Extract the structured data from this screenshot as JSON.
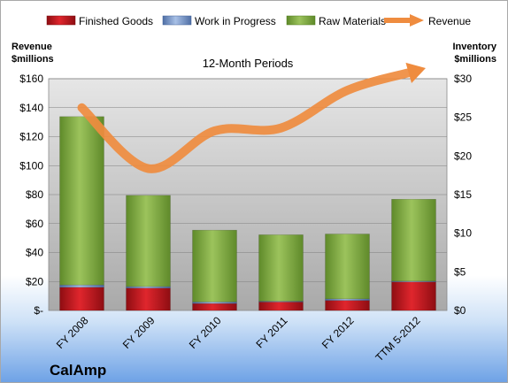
{
  "company": "CalAmp",
  "chart_data": {
    "type": "bar",
    "subtitle": "12-Month Periods",
    "categories": [
      "FY 2008",
      "FY 2009",
      "FY 2010",
      "FY 2011",
      "FY 2012",
      "TTM 5-2012"
    ],
    "stacked_series": [
      {
        "name": "Finished Goods",
        "axis": "right",
        "color": "#c0181f",
        "values": [
          3.0,
          2.9,
          0.9,
          1.1,
          1.3,
          3.7
        ]
      },
      {
        "name": "Work in Progress",
        "axis": "right",
        "color": "#7e9ccc",
        "values": [
          0.3,
          0.2,
          0.2,
          0.1,
          0.2,
          0.1
        ]
      },
      {
        "name": "Raw Materials",
        "axis": "right",
        "color": "#8bb04c",
        "values": [
          21.8,
          11.8,
          9.3,
          8.6,
          8.4,
          10.6
        ]
      }
    ],
    "line_series": {
      "name": "Revenue",
      "axis": "left",
      "color": "#ef8c3f",
      "values": [
        140,
        98,
        124,
        126,
        152,
        165
      ]
    },
    "left_axis": {
      "label_line1": "Revenue",
      "label_line2": "$millions",
      "ylim": [
        0,
        160
      ],
      "ticks": [
        0,
        20,
        40,
        60,
        80,
        100,
        120,
        140,
        160
      ],
      "tick_labels": [
        "$-",
        "$20",
        "$40",
        "$60",
        "$80",
        "$100",
        "$120",
        "$140",
        "$160"
      ]
    },
    "right_axis": {
      "label_line1": "Inventory",
      "label_line2": "$millions",
      "ylim": [
        0,
        30
      ],
      "ticks": [
        0,
        5,
        10,
        15,
        20,
        25,
        30
      ],
      "tick_labels": [
        "$0",
        "$5",
        "$10",
        "$15",
        "$20",
        "$25",
        "$30"
      ]
    },
    "legend": [
      "Finished Goods",
      "Work in Progress",
      "Raw Materials",
      "Revenue"
    ],
    "legend_position": "top",
    "grid": true
  }
}
